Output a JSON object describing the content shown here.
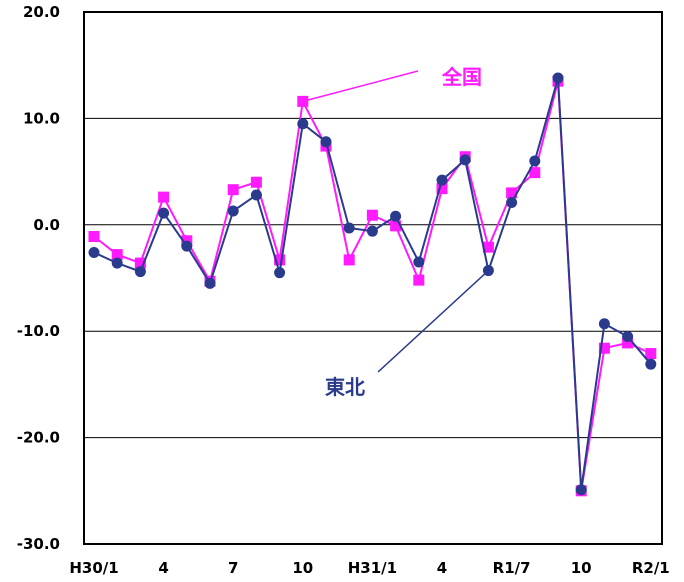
{
  "chart_data": {
    "type": "line",
    "title": "",
    "xlabel": "",
    "ylabel": "",
    "ylim": [
      -30,
      20
    ],
    "yticks": [
      20,
      10,
      0,
      -10,
      -20,
      -30
    ],
    "ytick_labels": [
      "20.0",
      "10.0",
      "0.0",
      "-10.0",
      "-20.0",
      "-30.0"
    ],
    "grid": "horizontal",
    "x_tick_labels": [
      {
        "index": 0,
        "label": "H30/1"
      },
      {
        "index": 3,
        "label": "4"
      },
      {
        "index": 6,
        "label": "7"
      },
      {
        "index": 9,
        "label": "10"
      },
      {
        "index": 12,
        "label": "H31/1"
      },
      {
        "index": 15,
        "label": "4"
      },
      {
        "index": 18,
        "label": "R1/7"
      },
      {
        "index": 21,
        "label": "10"
      },
      {
        "index": 24,
        "label": "R2/1"
      }
    ],
    "n_points": 25,
    "series": [
      {
        "name": "全国",
        "color": "#ff1aff",
        "marker": "square",
        "values": [
          -1.1,
          -2.8,
          -3.6,
          2.6,
          -1.5,
          -5.3,
          3.3,
          4.0,
          -3.3,
          11.6,
          7.4,
          -3.3,
          0.9,
          -0.1,
          -5.2,
          3.4,
          6.4,
          -2.1,
          3.0,
          4.9,
          13.5,
          -25.0,
          -11.6,
          -11.1,
          -12.1
        ]
      },
      {
        "name": "東北",
        "color": "#2a3a8c",
        "marker": "circle",
        "values": [
          -2.6,
          -3.6,
          -4.4,
          1.1,
          -2.0,
          -5.5,
          1.3,
          2.8,
          -4.5,
          9.5,
          7.8,
          -0.3,
          -0.6,
          0.8,
          -3.5,
          4.2,
          6.1,
          -4.3,
          2.1,
          6.0,
          13.8,
          -24.9,
          -9.3,
          -10.5,
          -13.1
        ]
      }
    ],
    "annotations": [
      {
        "text": "全国",
        "series": "全国",
        "point_index": 9,
        "color": "#ff1aff"
      },
      {
        "text": "東北",
        "series": "東北",
        "point_index": 17,
        "color": "#2a3a8c"
      }
    ]
  }
}
